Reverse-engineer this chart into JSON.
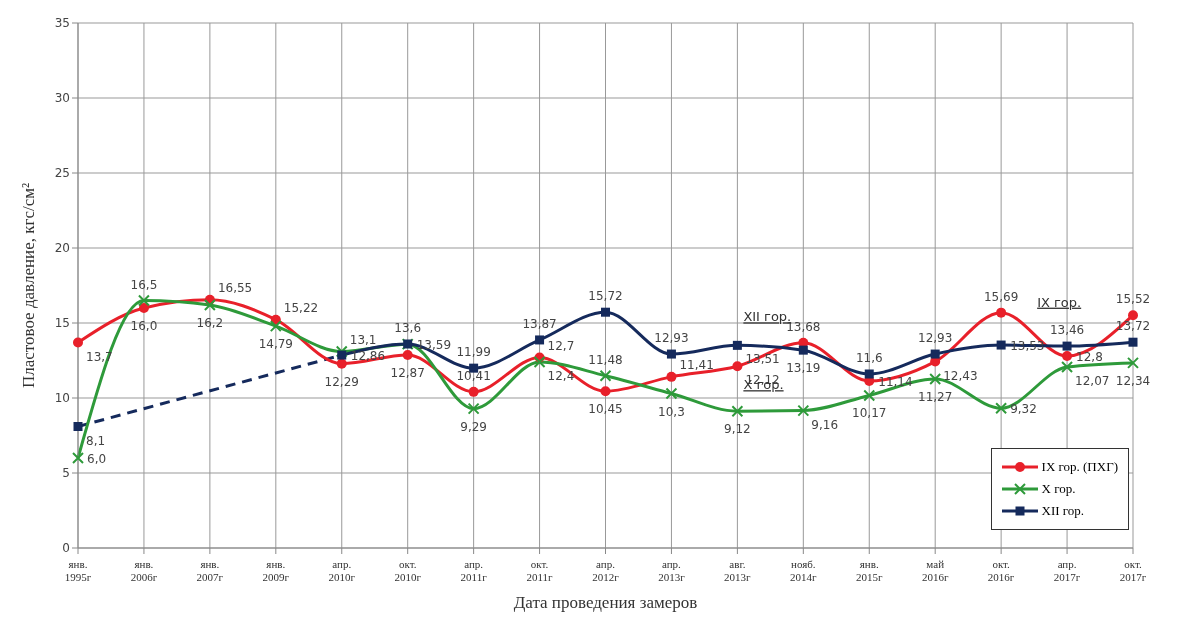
{
  "chart_data": {
    "type": "line",
    "xlabel": "Дата проведения замеров",
    "ylabel": "Пластовое давление, кгс/см²",
    "categories": [
      "янв. 1995г",
      "янв. 2006г",
      "янв. 2007г",
      "янв. 2009г",
      "апр. 2010г",
      "окт. 2010г",
      "апр. 2011г",
      "окт. 2011г",
      "апр. 2012г",
      "апр. 2013г",
      "авг. 2013г",
      "нояб. 2014г",
      "янв. 2015г",
      "май 2016г",
      "окт. 2016г",
      "апр. 2017г",
      "окт. 2017г"
    ],
    "series": [
      {
        "name": "IX гор. (ПХГ)",
        "color": "#e8202a",
        "marker": "circle",
        "values": [
          13.7,
          16.0,
          16.55,
          15.22,
          12.29,
          12.87,
          10.41,
          12.7,
          10.45,
          11.41,
          12.12,
          13.68,
          11.14,
          12.43,
          15.69,
          12.8,
          15.52
        ],
        "value_labels": [
          "13,7",
          "16,0",
          "16,55",
          "15,22",
          "12,29",
          "12,87",
          "10,41",
          "12,7",
          "10,45",
          "11,41",
          "12,12",
          "13,68",
          "11,14",
          "12,43",
          "15,69",
          "12,8",
          "15,52"
        ]
      },
      {
        "name": "X гор.",
        "color": "#2e9a3a",
        "marker": "cross",
        "values": [
          6.0,
          16.5,
          16.2,
          14.79,
          13.1,
          13.59,
          9.29,
          12.4,
          11.48,
          10.3,
          9.12,
          9.16,
          10.17,
          11.27,
          9.32,
          12.07,
          12.34
        ],
        "value_labels": [
          "6,0",
          "16,5",
          "16,2",
          "14,79",
          "13,1",
          "13,59",
          "9,29",
          "12,4",
          "11,48",
          "10,3",
          "9,12",
          "9,16",
          "10,17",
          "11,27",
          "9,32",
          "12,07",
          "12,34"
        ]
      },
      {
        "name": "XII гор.",
        "color": "#152a5c",
        "marker": "square",
        "values": [
          8.1,
          null,
          null,
          null,
          12.86,
          13.6,
          11.99,
          13.87,
          15.72,
          12.93,
          13.51,
          13.19,
          11.6,
          12.93,
          13.53,
          13.46,
          13.72
        ],
        "value_labels": [
          "8,1",
          null,
          null,
          null,
          "12,86",
          "13,6",
          "11,99",
          "13,87",
          "15,72",
          "12,93",
          "13,51",
          "13,19",
          "11,6",
          "12,93",
          "13,53",
          "13,46",
          "13,72"
        ]
      }
    ],
    "annotations": [
      {
        "text": "XII гор.",
        "x": "авг. 2013г",
        "y": 13.51
      },
      {
        "text": "X гор.",
        "x": "авг. 2013г",
        "y": 9.12
      },
      {
        "text": "IX гор.",
        "x": "окт. 2016г",
        "y": 15.69
      }
    ],
    "ylim": [
      0,
      35
    ],
    "yticks": [
      0,
      5,
      10,
      15,
      20,
      25,
      30,
      35
    ],
    "grid": true,
    "legend": "bottom right"
  }
}
